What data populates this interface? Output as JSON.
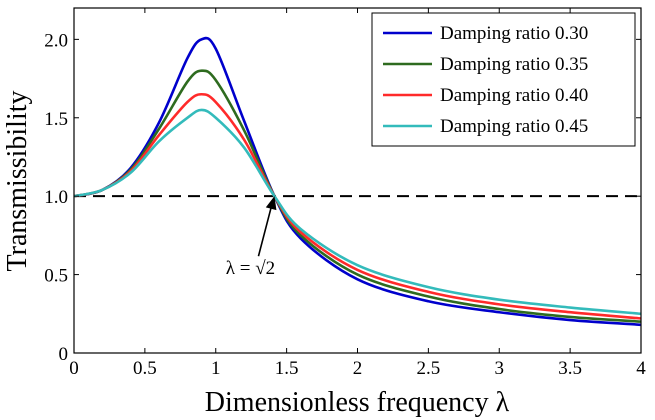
{
  "chart_data": {
    "type": "line",
    "xlabel": "Dimensionless frequency λ",
    "ylabel": "Transmissibility",
    "xlim": [
      0,
      4
    ],
    "ylim": [
      0,
      2.2
    ],
    "xticks": [
      0,
      0.5,
      1,
      1.5,
      2,
      2.5,
      3,
      3.5,
      4
    ],
    "xtick_labels": [
      "0",
      "0.5",
      "1",
      "1.5",
      "2",
      "2.5",
      "3",
      "3.5",
      "4"
    ],
    "yticks": [
      0,
      0.5,
      1.0,
      1.5,
      2.0
    ],
    "ytick_labels": [
      "0",
      "0.5",
      "1.0",
      "1.5",
      "2.0"
    ],
    "grid": false,
    "legend_position": "top-right",
    "x": [
      0,
      0.2,
      0.4,
      0.6,
      0.8,
      0.9,
      1.0,
      1.2,
      1.4142,
      1.6,
      2.0,
      2.5,
      3.0,
      3.5,
      4.0
    ],
    "series": [
      {
        "name": "Damping ratio 0.30",
        "color": "#0000cc",
        "values": [
          1.0,
          1.04,
          1.18,
          1.47,
          1.88,
          2.0,
          1.94,
          1.48,
          1.0,
          0.73,
          0.47,
          0.33,
          0.26,
          0.21,
          0.18
        ]
      },
      {
        "name": "Damping ratio 0.35",
        "color": "#2e6b1f",
        "values": [
          1.0,
          1.04,
          1.17,
          1.43,
          1.73,
          1.8,
          1.74,
          1.42,
          1.0,
          0.75,
          0.5,
          0.36,
          0.28,
          0.23,
          0.2
        ]
      },
      {
        "name": "Damping ratio 0.40",
        "color": "#ff2a2a",
        "values": [
          1.0,
          1.04,
          1.16,
          1.39,
          1.6,
          1.65,
          1.6,
          1.36,
          1.0,
          0.77,
          0.53,
          0.39,
          0.31,
          0.26,
          0.22
        ]
      },
      {
        "name": "Damping ratio 0.45",
        "color": "#33bbbb",
        "values": [
          1.0,
          1.04,
          1.15,
          1.35,
          1.5,
          1.55,
          1.5,
          1.31,
          1.0,
          0.79,
          0.56,
          0.42,
          0.34,
          0.29,
          0.25
        ]
      }
    ],
    "reference_line": {
      "y": 1.0,
      "style": "dashed",
      "color": "#000000"
    },
    "annotation": {
      "text": "λ = √2",
      "x": 1.4142,
      "y": 1.0
    }
  }
}
